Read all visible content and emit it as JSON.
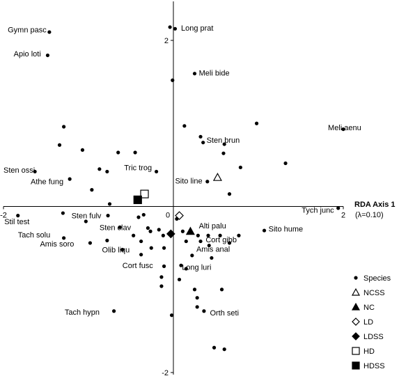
{
  "chart_data": {
    "type": "scatter",
    "xlabel": "RDA Axis 1",
    "xlabel_note": "(λ=0.10)",
    "xlim": [
      -2,
      2
    ],
    "ylim": [
      -2,
      2
    ],
    "x_ticks": [
      {
        "value": -2,
        "label": "-2"
      },
      {
        "value": 0,
        "label": "0"
      },
      {
        "value": 2,
        "label": "2"
      }
    ],
    "y_ticks": [
      {
        "value": 2,
        "label": "2"
      },
      {
        "value": 0,
        "label": "0"
      },
      {
        "value": -2,
        "label": "-2"
      }
    ],
    "legend_position": "bottom-right",
    "species": [
      {
        "x": -1.46,
        "y": 2.1
      },
      {
        "x": -1.48,
        "y": 1.82
      },
      {
        "x": -0.04,
        "y": 2.16
      },
      {
        "x": 0.02,
        "y": 2.14
      },
      {
        "x": 0.25,
        "y": 1.6
      },
      {
        "x": -0.01,
        "y": 1.52
      },
      {
        "x": 0.13,
        "y": 0.97
      },
      {
        "x": 0.98,
        "y": 1.0
      },
      {
        "x": 2.0,
        "y": 0.93
      },
      {
        "x": -1.29,
        "y": 0.96
      },
      {
        "x": 0.32,
        "y": 0.84
      },
      {
        "x": 0.35,
        "y": 0.77
      },
      {
        "x": -1.34,
        "y": 0.74
      },
      {
        "x": -1.07,
        "y": 0.68
      },
      {
        "x": 0.6,
        "y": 0.75
      },
      {
        "x": -0.65,
        "y": 0.65
      },
      {
        "x": -0.45,
        "y": 0.65
      },
      {
        "x": 0.59,
        "y": 0.64
      },
      {
        "x": 1.32,
        "y": 0.52
      },
      {
        "x": 0.79,
        "y": 0.47
      },
      {
        "x": -1.63,
        "y": 0.42
      },
      {
        "x": -0.87,
        "y": 0.45
      },
      {
        "x": -0.78,
        "y": 0.42
      },
      {
        "x": -0.2,
        "y": 0.42
      },
      {
        "x": 0.4,
        "y": 0.3
      },
      {
        "x": -1.22,
        "y": 0.33
      },
      {
        "x": -0.96,
        "y": 0.2
      },
      {
        "x": 0.66,
        "y": 0.15
      },
      {
        "x": -0.75,
        "y": 0.03
      },
      {
        "x": -1.83,
        "y": -0.11
      },
      {
        "x": -1.3,
        "y": -0.08
      },
      {
        "x": -0.77,
        "y": -0.11
      },
      {
        "x": -1.03,
        "y": -0.18
      },
      {
        "x": -0.35,
        "y": -0.1
      },
      {
        "x": -0.41,
        "y": -0.13
      },
      {
        "x": 0.04,
        "y": -0.15
      },
      {
        "x": -0.63,
        "y": -0.25
      },
      {
        "x": -0.3,
        "y": -0.26
      },
      {
        "x": -0.27,
        "y": -0.3
      },
      {
        "x": -0.17,
        "y": -0.28
      },
      {
        "x": 0.11,
        "y": -0.3
      },
      {
        "x": -0.47,
        "y": -0.35
      },
      {
        "x": -0.12,
        "y": -0.35
      },
      {
        "x": 0.29,
        "y": -0.35
      },
      {
        "x": 0.41,
        "y": -0.35
      },
      {
        "x": 0.55,
        "y": -0.35
      },
      {
        "x": 0.77,
        "y": -0.35
      },
      {
        "x": 1.07,
        "y": -0.29
      },
      {
        "x": 1.94,
        "y": -0.02
      },
      {
        "x": -1.29,
        "y": -0.38
      },
      {
        "x": -0.98,
        "y": -0.44
      },
      {
        "x": -0.78,
        "y": -0.41
      },
      {
        "x": -0.38,
        "y": -0.42
      },
      {
        "x": 0.15,
        "y": -0.42
      },
      {
        "x": 0.32,
        "y": -0.42
      },
      {
        "x": 0.42,
        "y": -0.47
      },
      {
        "x": 0.66,
        "y": -0.44
      },
      {
        "x": -0.6,
        "y": -0.52
      },
      {
        "x": -0.26,
        "y": -0.5
      },
      {
        "x": -0.11,
        "y": -0.5
      },
      {
        "x": -0.38,
        "y": -0.58
      },
      {
        "x": 0.22,
        "y": -0.59
      },
      {
        "x": 0.45,
        "y": -0.62
      },
      {
        "x": 0.09,
        "y": -0.71
      },
      {
        "x": 0.15,
        "y": -0.75
      },
      {
        "x": -0.11,
        "y": -0.72
      },
      {
        "x": -0.14,
        "y": -0.85
      },
      {
        "x": 0.07,
        "y": -0.88
      },
      {
        "x": -0.14,
        "y": -0.96
      },
      {
        "x": 0.25,
        "y": -1.0
      },
      {
        "x": 0.57,
        "y": -1.0
      },
      {
        "x": 0.28,
        "y": -1.1
      },
      {
        "x": 0.28,
        "y": -1.21
      },
      {
        "x": -0.7,
        "y": -1.26
      },
      {
        "x": 0.36,
        "y": -1.26
      },
      {
        "x": -0.02,
        "y": -1.31
      },
      {
        "x": 0.48,
        "y": -1.7
      },
      {
        "x": 0.6,
        "y": -1.72
      }
    ],
    "groups": [
      {
        "name": "NCSS",
        "marker": "open-triangle",
        "x": 0.52,
        "y": 0.35
      },
      {
        "name": "NC",
        "marker": "filled-triangle",
        "x": 0.2,
        "y": -0.3
      },
      {
        "name": "LD",
        "marker": "open-diamond",
        "x": 0.07,
        "y": -0.11
      },
      {
        "name": "LDSS",
        "marker": "filled-diamond",
        "x": -0.03,
        "y": -0.33
      },
      {
        "name": "HD",
        "marker": "open-square",
        "x": -0.34,
        "y": 0.15
      },
      {
        "name": "HDSS",
        "marker": "filled-square",
        "x": -0.42,
        "y": 0.08
      }
    ],
    "species_labels": [
      {
        "text": "Gymn pasc",
        "x": -1.95,
        "y": 2.13
      },
      {
        "text": "Apio loti",
        "x": -1.88,
        "y": 1.84
      },
      {
        "text": "Long prat",
        "x": 0.09,
        "y": 2.15
      },
      {
        "text": "Meli bide",
        "x": 0.3,
        "y": 1.61
      },
      {
        "text": "Meli aenu",
        "x": 1.82,
        "y": 0.95
      },
      {
        "text": "Sten brun",
        "x": 0.39,
        "y": 0.8
      },
      {
        "text": "Sten ossi",
        "x": -2.0,
        "y": 0.44
      },
      {
        "text": "Tric trog",
        "x": -0.58,
        "y": 0.47
      },
      {
        "text": "Athe fung",
        "x": -1.68,
        "y": 0.3
      },
      {
        "text": "Sito line",
        "x": 0.02,
        "y": 0.31
      },
      {
        "text": "Tych junc",
        "x": 1.51,
        "y": -0.04
      },
      {
        "text": "Stil test",
        "x": -1.99,
        "y": -0.18
      },
      {
        "text": "Sten fulv",
        "x": -1.2,
        "y": -0.11
      },
      {
        "text": "Sito hume",
        "x": 1.12,
        "y": -0.27
      },
      {
        "text": "Alti palu",
        "x": 0.3,
        "y": -0.23
      },
      {
        "text": "Sten clav",
        "x": -0.87,
        "y": -0.25
      },
      {
        "text": "Tach solu",
        "x": -1.83,
        "y": -0.34
      },
      {
        "text": "Cort gibb",
        "x": 0.38,
        "y": -0.4
      },
      {
        "text": "Amis soro",
        "x": -1.57,
        "y": -0.45
      },
      {
        "text": "Olib liqu",
        "x": -0.84,
        "y": -0.52
      },
      {
        "text": "Amis anal",
        "x": 0.27,
        "y": -0.51
      },
      {
        "text": "Cort fusc",
        "x": -0.6,
        "y": -0.71
      },
      {
        "text": "Long luri",
        "x": 0.1,
        "y": -0.73
      },
      {
        "text": "Tach hypn",
        "x": -1.28,
        "y": -1.27
      },
      {
        "text": "Orth seti",
        "x": 0.43,
        "y": -1.28
      }
    ],
    "legend": [
      {
        "marker": "filled-dot",
        "label": "Species"
      },
      {
        "marker": "open-triangle",
        "label": "NCSS"
      },
      {
        "marker": "filled-triangle",
        "label": "NC"
      },
      {
        "marker": "open-diamond",
        "label": "LD"
      },
      {
        "marker": "filled-diamond",
        "label": "LDSS"
      },
      {
        "marker": "open-square",
        "label": "HD"
      },
      {
        "marker": "filled-square",
        "label": "HDSS"
      }
    ]
  }
}
